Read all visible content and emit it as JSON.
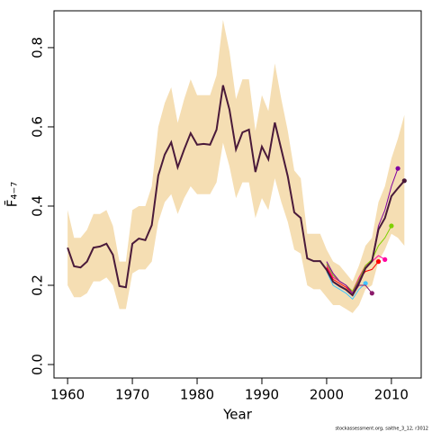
{
  "chart_data": {
    "type": "line",
    "xlabel": "Year",
    "ylabel": "F̄₄₋₇",
    "footnote": "stockassessment.org, saithe_3_12, r3012",
    "xlim": [
      1957.9,
      2014.6
    ],
    "ylim": [
      -0.034,
      0.893
    ],
    "xticks": [
      1960,
      1970,
      1980,
      1990,
      2000,
      2010
    ],
    "yticks": [
      {
        "value": 0,
        "label": "0.0"
      },
      {
        "value": 0.2,
        "label": "0.2"
      },
      {
        "value": 0.4,
        "label": "0.4"
      },
      {
        "value": 0.6,
        "label": "0.6"
      },
      {
        "value": 0.8,
        "label": "0.8"
      }
    ],
    "x": [
      1960,
      1961,
      1962,
      1963,
      1964,
      1965,
      1966,
      1967,
      1968,
      1969,
      1970,
      1971,
      1972,
      1973,
      1974,
      1975,
      1976,
      1977,
      1978,
      1979,
      1980,
      1981,
      1982,
      1983,
      1984,
      1985,
      1986,
      1987,
      1988,
      1989,
      1990,
      1991,
      1992,
      1993,
      1994,
      1995,
      1996,
      1997,
      1998,
      1999,
      2000,
      2001,
      2002,
      2003,
      2004,
      2005,
      2006,
      2007,
      2008,
      2009,
      2010,
      2011,
      2012
    ],
    "band": {
      "color": "#f5deb3",
      "upper": [
        0.39,
        0.32,
        0.32,
        0.34,
        0.38,
        0.38,
        0.39,
        0.35,
        0.26,
        0.26,
        0.39,
        0.4,
        0.4,
        0.45,
        0.6,
        0.66,
        0.7,
        0.61,
        0.67,
        0.72,
        0.68,
        0.68,
        0.68,
        0.73,
        0.87,
        0.79,
        0.67,
        0.72,
        0.72,
        0.59,
        0.68,
        0.64,
        0.76,
        0.67,
        0.59,
        0.49,
        0.47,
        0.33,
        0.33,
        0.33,
        0.29,
        0.26,
        0.25,
        0.23,
        0.21,
        0.25,
        0.3,
        0.32,
        0.41,
        0.45,
        0.52,
        0.57,
        0.63
      ],
      "lower": [
        0.2,
        0.17,
        0.17,
        0.18,
        0.21,
        0.21,
        0.22,
        0.2,
        0.14,
        0.14,
        0.23,
        0.24,
        0.24,
        0.26,
        0.36,
        0.41,
        0.43,
        0.38,
        0.42,
        0.45,
        0.43,
        0.43,
        0.43,
        0.46,
        0.56,
        0.5,
        0.42,
        0.46,
        0.46,
        0.37,
        0.42,
        0.39,
        0.47,
        0.41,
        0.36,
        0.29,
        0.28,
        0.2,
        0.19,
        0.19,
        0.17,
        0.15,
        0.15,
        0.14,
        0.13,
        0.15,
        0.19,
        0.2,
        0.26,
        0.29,
        0.33,
        0.32,
        0.3
      ]
    },
    "series": [
      {
        "color": "#4a1a3a",
        "values": [
          0.295,
          0.248,
          0.245,
          0.26,
          0.295,
          0.298,
          0.305,
          0.277,
          0.198,
          0.195,
          0.305,
          0.318,
          0.314,
          0.352,
          0.477,
          0.53,
          0.561,
          0.498,
          0.543,
          0.584,
          0.555,
          0.557,
          0.555,
          0.593,
          0.705,
          0.643,
          0.543,
          0.586,
          0.593,
          0.486,
          0.55,
          0.518,
          0.611,
          0.543,
          0.475,
          0.384,
          0.37,
          0.268,
          0.261,
          0.261,
          0.239,
          0.209,
          0.198,
          0.189,
          0.175,
          0.205,
          0.243,
          0.261,
          0.341,
          0.37,
          0.425,
          0.445,
          0.464
        ]
      },
      {
        "color": "#40c4ff",
        "x": [
          2000,
          2001,
          2002,
          2003,
          2004,
          2005,
          2006
        ],
        "values": [
          0.235,
          0.2,
          0.19,
          0.18,
          0.165,
          0.19,
          0.205
        ]
      },
      {
        "color": "#8b1a6b",
        "x": [
          2000,
          2001,
          2002,
          2003,
          2004,
          2005,
          2006,
          2007
        ],
        "values": [
          0.24,
          0.21,
          0.2,
          0.19,
          0.175,
          0.2,
          0.2,
          0.18
        ]
      },
      {
        "color": "#ff0000",
        "x": [
          2000,
          2001,
          2002,
          2003,
          2004,
          2005,
          2006,
          2007,
          2008
        ],
        "values": [
          0.245,
          0.215,
          0.205,
          0.195,
          0.18,
          0.215,
          0.235,
          0.24,
          0.26
        ]
      },
      {
        "color": "#ff00a0",
        "x": [
          2000,
          2001,
          2002,
          2003,
          2004,
          2005,
          2006,
          2007,
          2008,
          2009
        ],
        "values": [
          0.25,
          0.22,
          0.21,
          0.2,
          0.185,
          0.22,
          0.25,
          0.26,
          0.275,
          0.265
        ]
      },
      {
        "color": "#7fd000",
        "x": [
          2000,
          2001,
          2002,
          2003,
          2004,
          2005,
          2006,
          2007,
          2008,
          2009,
          2010
        ],
        "values": [
          0.255,
          0.225,
          0.21,
          0.2,
          0.185,
          0.215,
          0.25,
          0.265,
          0.3,
          0.32,
          0.35
        ]
      },
      {
        "color": "#8000a0",
        "x": [
          2000,
          2001,
          2002,
          2003,
          2004,
          2005,
          2006,
          2007,
          2008,
          2009,
          2010,
          2011
        ],
        "values": [
          0.26,
          0.23,
          0.21,
          0.2,
          0.18,
          0.21,
          0.245,
          0.262,
          0.35,
          0.39,
          0.45,
          0.495
        ]
      }
    ]
  }
}
